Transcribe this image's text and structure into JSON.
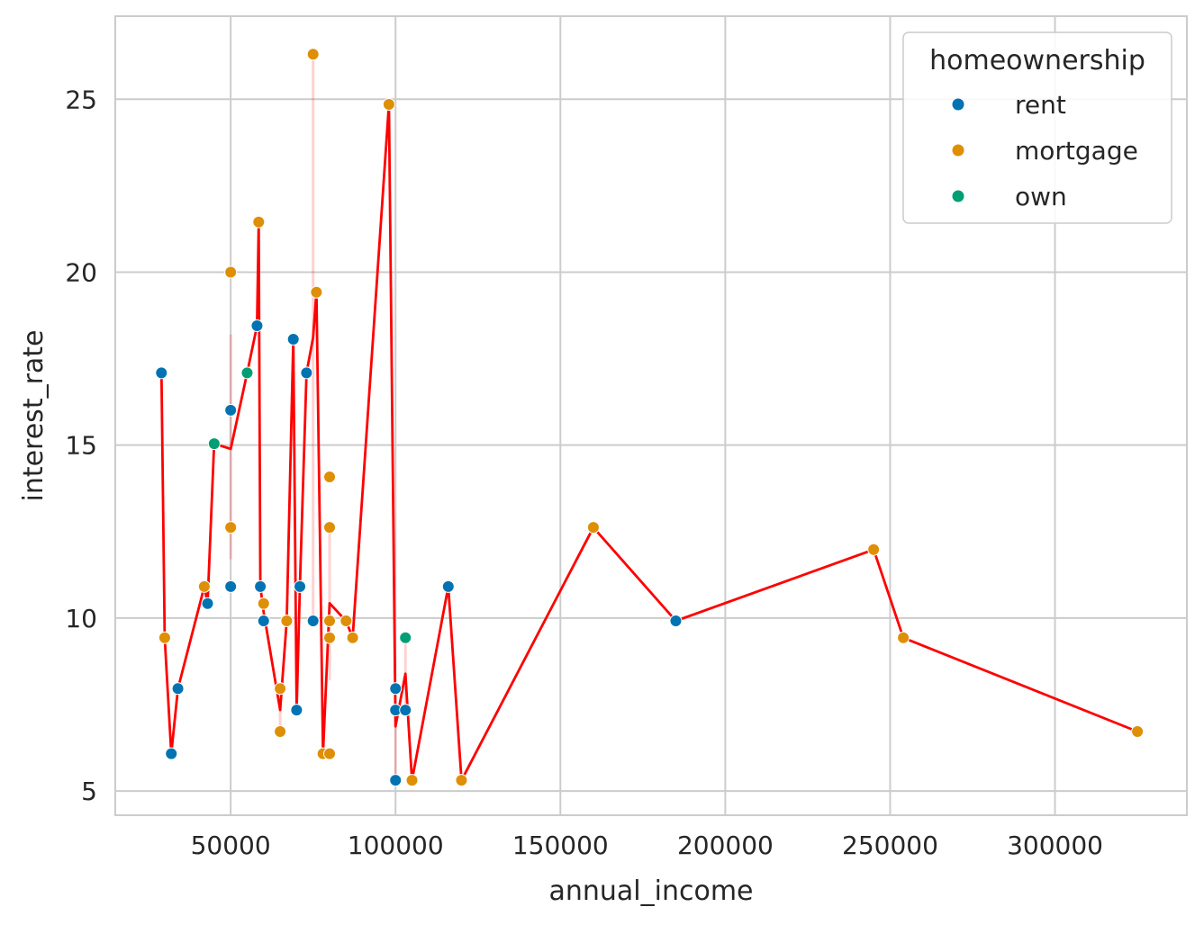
{
  "chart_data": {
    "type": "scatter",
    "title": "",
    "xlabel": "annual_income",
    "ylabel": "interest_rate",
    "xlim": [
      15000,
      340000
    ],
    "ylim": [
      4.3,
      27.4
    ],
    "xticks": [
      50000,
      100000,
      150000,
      200000,
      250000,
      300000
    ],
    "yticks": [
      5,
      10,
      15,
      20,
      25
    ],
    "grid": true,
    "legend": {
      "title": "homeownership",
      "placement": "top-right",
      "entries": [
        {
          "name": "rent",
          "color": "#0173b2"
        },
        {
          "name": "mortgage",
          "color": "#de8f05"
        },
        {
          "name": "own",
          "color": "#029e73"
        }
      ]
    },
    "series": [
      {
        "name": "rent",
        "color": "#0173b2",
        "points": [
          [
            29000,
            17.09
          ],
          [
            32000,
            6.08
          ],
          [
            34000,
            7.96
          ],
          [
            43000,
            10.42
          ],
          [
            50000,
            16.01
          ],
          [
            50000,
            10.91
          ],
          [
            58000,
            18.45
          ],
          [
            59000,
            10.91
          ],
          [
            60000,
            9.92
          ],
          [
            69000,
            18.06
          ],
          [
            70000,
            7.34
          ],
          [
            71000,
            10.91
          ],
          [
            73000,
            17.09
          ],
          [
            75000,
            9.92
          ],
          [
            100000,
            5.31
          ],
          [
            100000,
            7.34
          ],
          [
            100000,
            7.96
          ],
          [
            103000,
            7.34
          ],
          [
            116000,
            10.91
          ],
          [
            185000,
            9.92
          ]
        ]
      },
      {
        "name": "mortgage",
        "color": "#de8f05",
        "points": [
          [
            30000,
            9.43
          ],
          [
            42000,
            10.91
          ],
          [
            50000,
            20.0
          ],
          [
            50000,
            12.62
          ],
          [
            58500,
            21.45
          ],
          [
            60000,
            10.42
          ],
          [
            65000,
            7.96
          ],
          [
            65000,
            6.72
          ],
          [
            67000,
            9.92
          ],
          [
            75000,
            26.3
          ],
          [
            76000,
            19.42
          ],
          [
            78000,
            6.08
          ],
          [
            80000,
            14.08
          ],
          [
            80000,
            12.62
          ],
          [
            80000,
            9.92
          ],
          [
            80000,
            9.43
          ],
          [
            80000,
            6.08
          ],
          [
            85000,
            9.92
          ],
          [
            87000,
            9.43
          ],
          [
            98000,
            24.85
          ],
          [
            105000,
            5.31
          ],
          [
            120000,
            5.31
          ],
          [
            160000,
            12.62
          ],
          [
            245000,
            11.98
          ],
          [
            254000,
            9.43
          ],
          [
            325000,
            6.72
          ]
        ]
      },
      {
        "name": "own",
        "color": "#029e73",
        "points": [
          [
            45000,
            15.04
          ],
          [
            55000,
            17.09
          ],
          [
            103000,
            9.43
          ]
        ]
      }
    ],
    "line": {
      "color": "#ff0000",
      "points": [
        [
          29000,
          17.09
        ],
        [
          30000,
          9.43
        ],
        [
          32000,
          6.08
        ],
        [
          34000,
          7.96
        ],
        [
          42000,
          10.91
        ],
        [
          43000,
          10.42
        ],
        [
          45000,
          15.04
        ],
        [
          50000,
          14.89
        ],
        [
          55000,
          17.09
        ],
        [
          58000,
          18.45
        ],
        [
          58500,
          21.45
        ],
        [
          59000,
          10.91
        ],
        [
          60000,
          10.17
        ],
        [
          65000,
          7.34
        ],
        [
          67000,
          9.92
        ],
        [
          69000,
          18.06
        ],
        [
          70000,
          7.34
        ],
        [
          71000,
          10.91
        ],
        [
          73000,
          17.09
        ],
        [
          75000,
          18.11
        ],
        [
          76000,
          19.42
        ],
        [
          78000,
          6.08
        ],
        [
          80000,
          10.43
        ],
        [
          85000,
          9.92
        ],
        [
          87000,
          9.43
        ],
        [
          98000,
          24.85
        ],
        [
          100000,
          6.87
        ],
        [
          103000,
          8.39
        ],
        [
          105000,
          5.31
        ],
        [
          116000,
          10.91
        ],
        [
          120000,
          5.31
        ],
        [
          160000,
          12.62
        ],
        [
          185000,
          9.92
        ],
        [
          245000,
          11.98
        ],
        [
          254000,
          9.43
        ],
        [
          325000,
          6.72
        ]
      ],
      "ci": [
        {
          "x": 50000,
          "low": 11.7,
          "high": 18.2
        },
        {
          "x": 65000,
          "low": 6.72,
          "high": 7.96
        },
        {
          "x": 75000,
          "low": 9.92,
          "high": 26.3
        },
        {
          "x": 80000,
          "low": 8.2,
          "high": 12.6
        },
        {
          "x": 100000,
          "low": 5.31,
          "high": 7.96
        },
        {
          "x": 103000,
          "low": 7.34,
          "high": 9.43
        }
      ]
    }
  }
}
